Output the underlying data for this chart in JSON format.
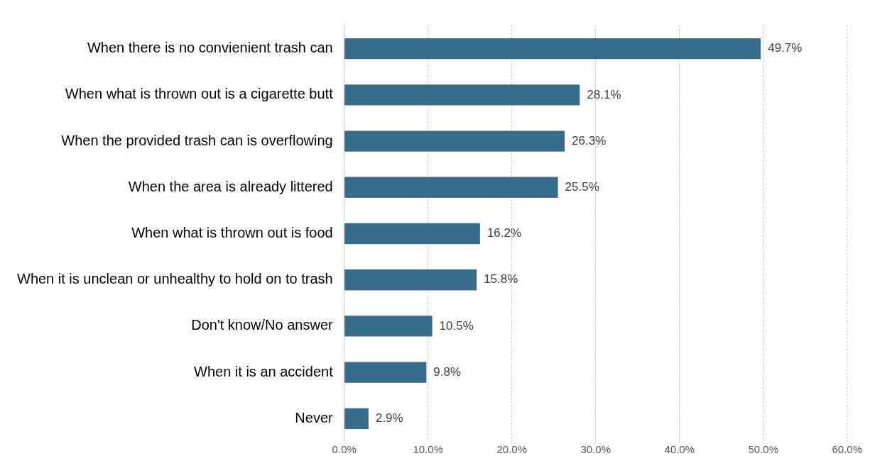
{
  "chart_data": {
    "type": "bar",
    "orientation": "horizontal",
    "categories": [
      "When there is no convienient trash can",
      "When what is thrown out is a cigarette butt",
      "When the provided trash can is overflowing",
      "When the area is already littered",
      "When what is thrown out is food",
      "When it is unclean or unhealthy to hold on to trash",
      "Don't know/No answer",
      "When it is an accident",
      "Never"
    ],
    "series": [
      {
        "color": "#396b8d",
        "values": [
          49.7,
          28.1,
          26.3,
          25.5,
          16.2,
          15.8,
          10.5,
          9.8,
          2.9
        ],
        "value_labels": [
          "49.7%",
          "28.1%",
          "26.3%",
          "25.5%",
          "16.2%",
          "15.8%",
          "10.5%",
          "9.8%",
          "2.9%"
        ]
      }
    ],
    "xlim": [
      0,
      60
    ],
    "xticks": [
      {
        "value": 0,
        "label": "0.0%"
      },
      {
        "value": 10,
        "label": "10.0%"
      },
      {
        "value": 20,
        "label": "20.0%"
      },
      {
        "value": 30,
        "label": "30.0%"
      },
      {
        "value": 40,
        "label": "40.0%"
      },
      {
        "value": 50,
        "label": "50.0%"
      },
      {
        "value": 60,
        "label": "60.0%"
      }
    ],
    "grid": "x",
    "legend": false
  }
}
